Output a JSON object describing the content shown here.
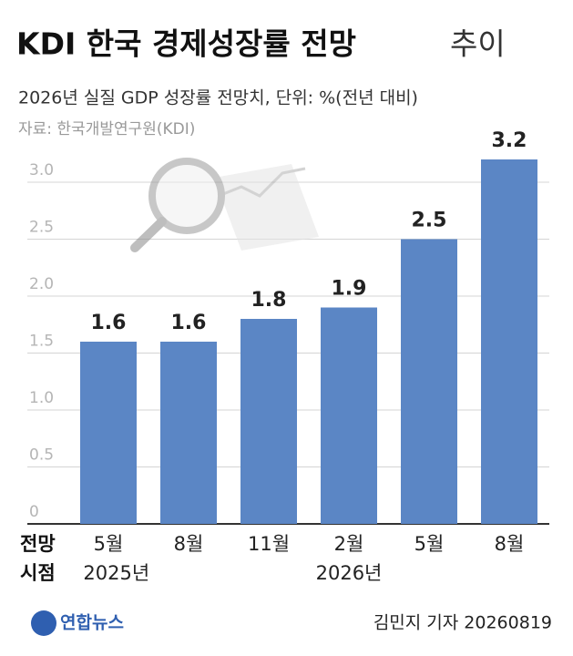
{
  "chart_data": {
    "type": "bar",
    "title": "KDI 한국 경제성장률 전망",
    "title_suffix": "추이",
    "subtitle": "2026년 실질 GDP 성장률 전망치, 단위: %(전년 대비)",
    "source": "자료: 한국개발연구원(KDI)",
    "x_label": [
      "전망",
      "시점"
    ],
    "categories": [
      "5월",
      "8월",
      "11월",
      "2월",
      "5월",
      "8월"
    ],
    "years": [
      "2025년",
      "2026년"
    ],
    "values": [
      1.6,
      1.6,
      1.8,
      1.9,
      2.5,
      3.2
    ],
    "color": "#5b86c5",
    "ylim": [
      0,
      3.3
    ],
    "yticks": [
      0,
      0.5,
      {
        "value": 1,
        "label": "1.0"
      },
      1.5,
      {
        "value": 2,
        "label": "2.0"
      },
      2.5,
      {
        "value": 3,
        "label": "3.0"
      }
    ],
    "grid": true,
    "footer": {
      "agency": "연합뉴스",
      "byline": "김민지 기자 20260819"
    }
  }
}
